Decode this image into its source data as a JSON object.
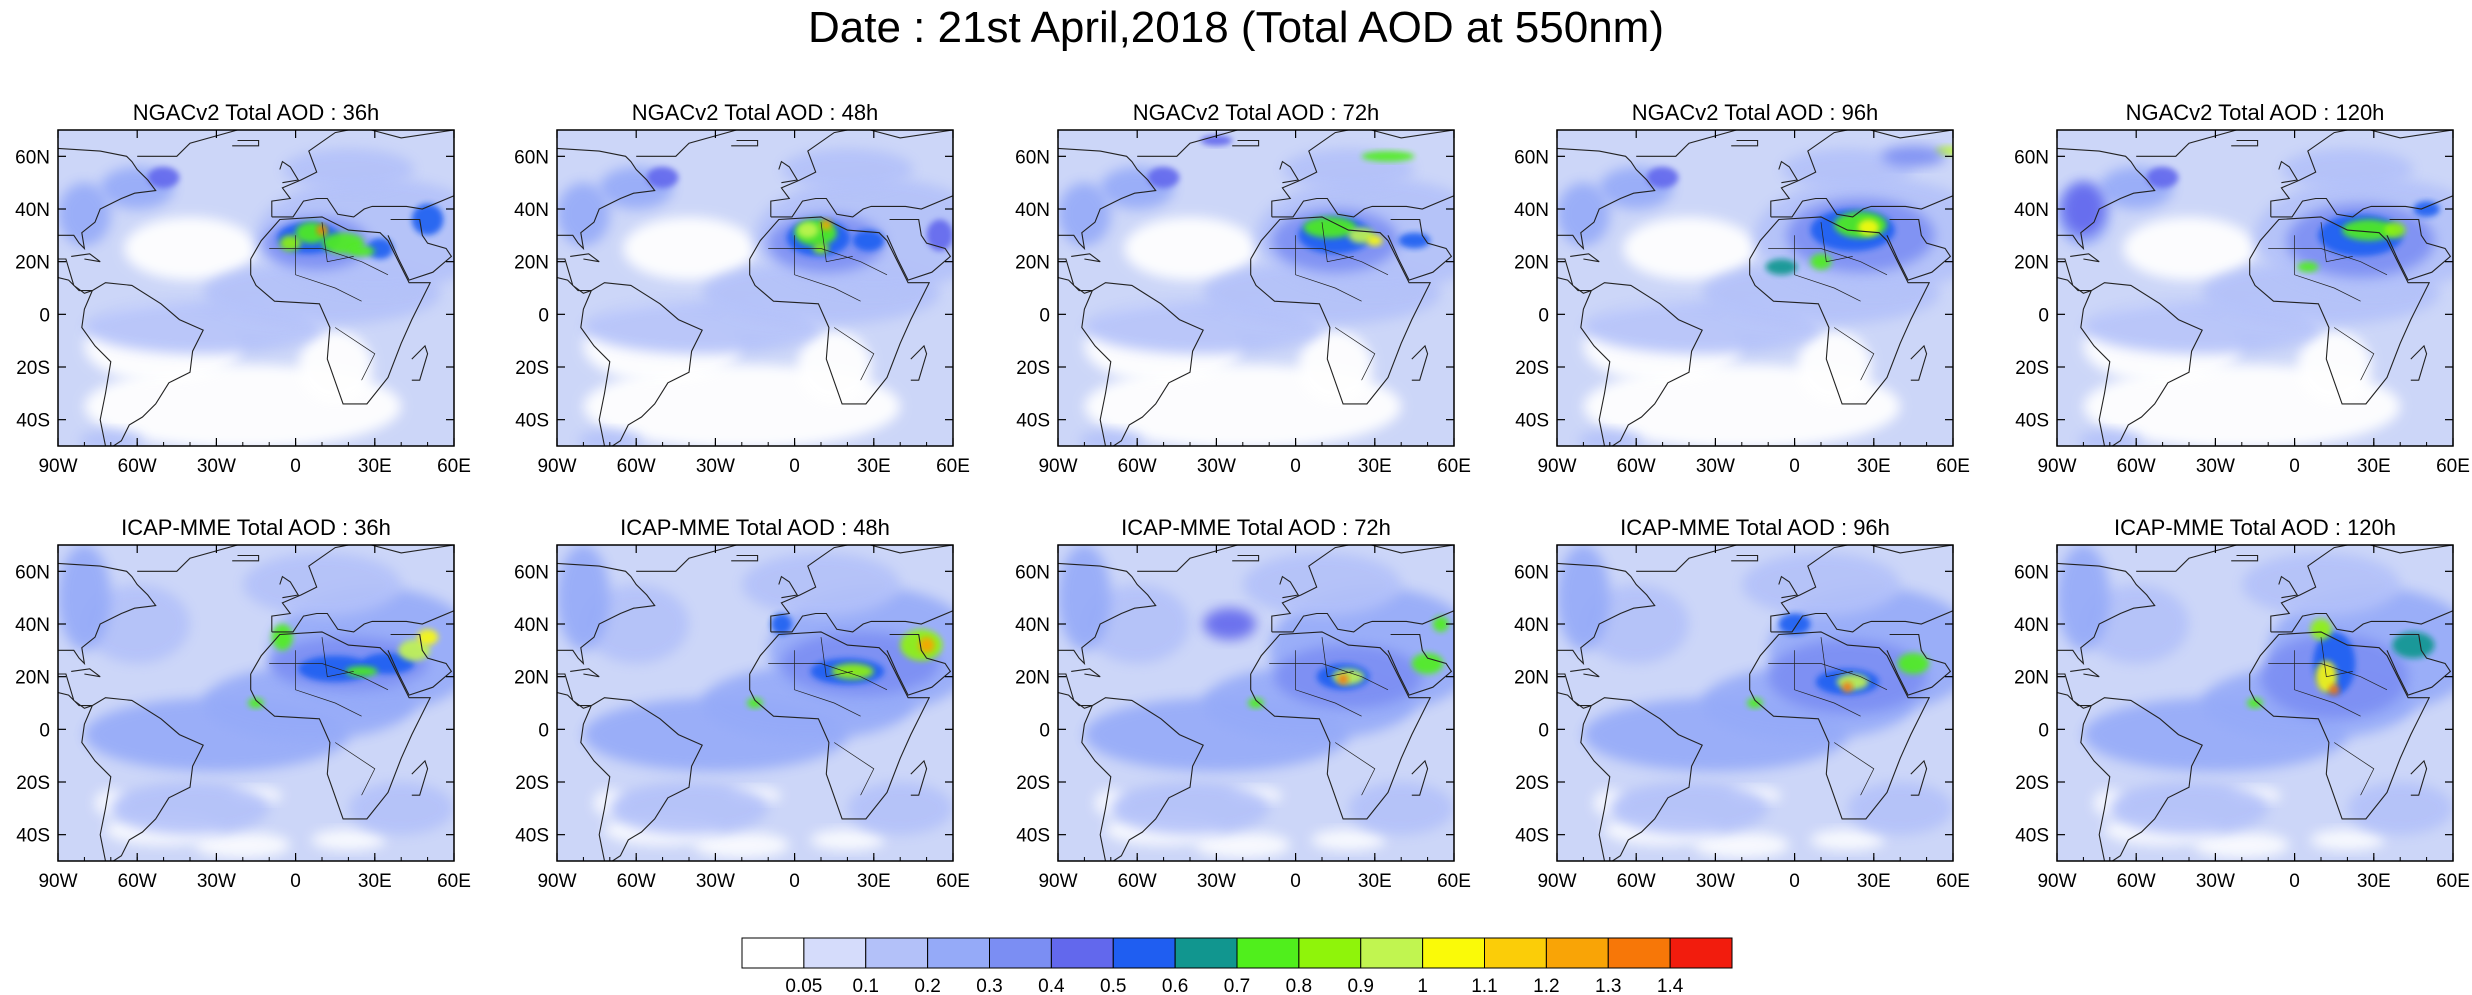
{
  "title": "Date : 21st April,2018 (Total AOD at 550nm)",
  "rows": [
    {
      "model": "NGACv2",
      "panels": [
        {
          "title": "NGACv2 Total AOD : 36h",
          "forecast_hour": 36
        },
        {
          "title": "NGACv2 Total AOD : 48h",
          "forecast_hour": 48
        },
        {
          "title": "NGACv2 Total AOD : 72h",
          "forecast_hour": 72
        },
        {
          "title": "NGACv2 Total AOD : 96h",
          "forecast_hour": 96
        },
        {
          "title": "NGACv2 Total AOD : 120h",
          "forecast_hour": 120
        }
      ]
    },
    {
      "model": "ICAP-MME",
      "panels": [
        {
          "title": "ICAP-MME Total AOD : 36h",
          "forecast_hour": 36
        },
        {
          "title": "ICAP-MME Total AOD : 48h",
          "forecast_hour": 48
        },
        {
          "title": "ICAP-MME Total AOD : 72h",
          "forecast_hour": 72
        },
        {
          "title": "ICAP-MME Total AOD : 96h",
          "forecast_hour": 96
        },
        {
          "title": "ICAP-MME Total AOD : 120h",
          "forecast_hour": 120
        }
      ]
    }
  ],
  "map_extent": {
    "lon_min": -90,
    "lon_max": 60,
    "lat_min": -50,
    "lat_max": 70
  },
  "lon_ticks": [
    {
      "value": -90,
      "label": "90W"
    },
    {
      "value": -60,
      "label": "60W"
    },
    {
      "value": -30,
      "label": "30W"
    },
    {
      "value": 0,
      "label": "0"
    },
    {
      "value": 30,
      "label": "30E"
    },
    {
      "value": 60,
      "label": "60E"
    }
  ],
  "lat_ticks": [
    {
      "value": 60,
      "label": "60N"
    },
    {
      "value": 40,
      "label": "40N"
    },
    {
      "value": 20,
      "label": "20N"
    },
    {
      "value": 0,
      "label": "0"
    },
    {
      "value": -20,
      "label": "20S"
    },
    {
      "value": -40,
      "label": "40S"
    }
  ],
  "colorbar": {
    "colors": [
      "#ffffff",
      "#d5dcfb",
      "#b3c1f9",
      "#95aaf8",
      "#7b8ef3",
      "#6268ed",
      "#1f5ef1",
      "#11968f",
      "#50ef1c",
      "#8ff40a",
      "#c1f550",
      "#fafa08",
      "#fbcd08",
      "#f9a406",
      "#f77708",
      "#f21c0d"
    ],
    "labels": [
      "0.05",
      "0.1",
      "0.2",
      "0.3",
      "0.4",
      "0.5",
      "0.6",
      "0.7",
      "0.8",
      "0.9",
      "1",
      "1.1",
      "1.2",
      "1.3",
      "1.4"
    ]
  },
  "field_colors": {
    "ocean": "#ccd6f8",
    "land_clear": "#ffffff",
    "light": "#b3c1f9"
  }
}
